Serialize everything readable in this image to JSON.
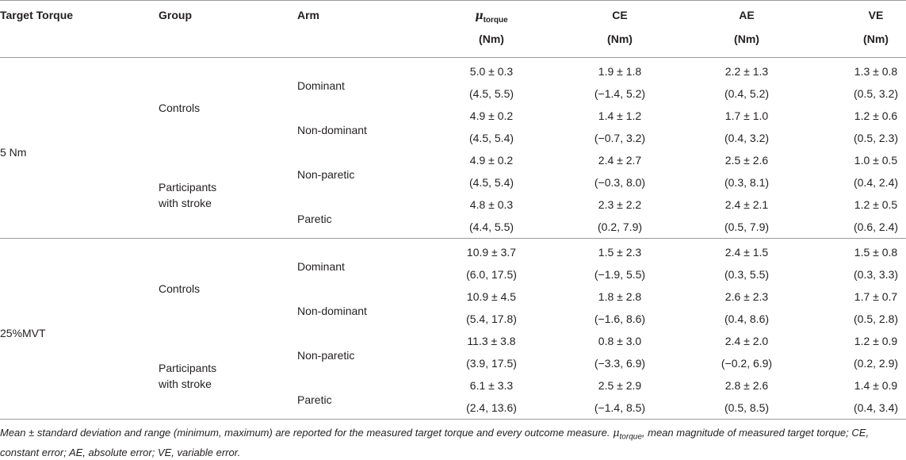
{
  "headers": {
    "target_torque": "Target Torque",
    "group": "Group",
    "arm": "Arm",
    "mu_symbol": "μ",
    "mu_sub": "torque",
    "ce": "CE",
    "ae": "AE",
    "ve": "VE",
    "unit": "(Nm)"
  },
  "sections": [
    {
      "target": "5 Nm",
      "groups": [
        {
          "line1": "Controls",
          "line2": "",
          "arms": [
            {
              "arm": "Dominant",
              "mu": [
                "5.0 ± 0.3",
                "(4.5, 5.5)"
              ],
              "ce": [
                "1.9 ± 1.8",
                "(−1.4, 5.2)"
              ],
              "ae": [
                "2.2 ± 1.3",
                "(0.4, 5.2)"
              ],
              "ve": [
                "1.3 ± 0.8",
                "(0.5, 3.2)"
              ]
            },
            {
              "arm": "Non-dominant",
              "mu": [
                "4.9 ± 0.2",
                "(4.5, 5.4)"
              ],
              "ce": [
                "1.4 ± 1.2",
                "(−0.7, 3.2)"
              ],
              "ae": [
                "1.7 ± 1.0",
                "(0.4, 3.2)"
              ],
              "ve": [
                "1.2 ± 0.6",
                "(0.5, 2.3)"
              ]
            }
          ]
        },
        {
          "line1": "Participants",
          "line2": "with stroke",
          "arms": [
            {
              "arm": "Non-paretic",
              "mu": [
                "4.9 ± 0.2",
                "(4.5, 5.4)"
              ],
              "ce": [
                "2.4 ± 2.7",
                "(−0.3, 8.0)"
              ],
              "ae": [
                "2.5 ± 2.6",
                "(0.3, 8.1)"
              ],
              "ve": [
                "1.0 ± 0.5",
                "(0.4, 2.4)"
              ]
            },
            {
              "arm": "Paretic",
              "mu": [
                "4.8 ± 0.3",
                "(4.4, 5.5)"
              ],
              "ce": [
                "2.3 ± 2.2",
                "(0.2, 7.9)"
              ],
              "ae": [
                "2.4 ± 2.1",
                "(0.5, 7.9)"
              ],
              "ve": [
                "1.2 ± 0.5",
                "(0.6, 2.4)"
              ]
            }
          ]
        }
      ]
    },
    {
      "target": "25%MVT",
      "groups": [
        {
          "line1": "Controls",
          "line2": "",
          "arms": [
            {
              "arm": "Dominant",
              "mu": [
                "10.9 ± 3.7",
                "(6.0, 17.5)"
              ],
              "ce": [
                "1.5 ± 2.3",
                "(−1.9, 5.5)"
              ],
              "ae": [
                "2.4 ± 1.5",
                "(0.3, 5.5)"
              ],
              "ve": [
                "1.5 ± 0.8",
                "(0.3, 3.3)"
              ]
            },
            {
              "arm": "Non-dominant",
              "mu": [
                "10.9 ± 4.5",
                "(5.4, 17.8)"
              ],
              "ce": [
                "1.8 ± 2.8",
                "(−1.6, 8.6)"
              ],
              "ae": [
                "2.6 ± 2.3",
                "(0.4, 8.6)"
              ],
              "ve": [
                "1.7 ± 0.7",
                "(0.5, 2.8)"
              ]
            }
          ]
        },
        {
          "line1": "Participants",
          "line2": "with stroke",
          "arms": [
            {
              "arm": "Non-paretic",
              "mu": [
                "11.3 ± 3.8",
                "(3.9, 17.5)"
              ],
              "ce": [
                "0.8 ± 3.0",
                "(−3.3, 6.9)"
              ],
              "ae": [
                "2.4 ± 2.0",
                "(−0.2, 6.9)"
              ],
              "ve": [
                "1.2 ± 0.9",
                "(0.2, 2.9)"
              ]
            },
            {
              "arm": "Paretic",
              "mu": [
                "6.1 ± 3.3",
                "(2.4, 13.6)"
              ],
              "ce": [
                "2.5 ± 2.9",
                "(−1.4, 8.5)"
              ],
              "ae": [
                "2.8 ± 2.6",
                "(0.5, 8.5)"
              ],
              "ve": [
                "1.4 ± 0.9",
                "(0.4, 3.4)"
              ]
            }
          ]
        }
      ]
    }
  ],
  "footnote": {
    "part1": "Mean ± standard deviation and range (minimum, maximum) are reported for the measured target torque and every outcome measure. ",
    "mu_symbol": "μ",
    "mu_sub": "torque",
    "part2": ", mean magnitude of measured target torque; CE, constant error; AE, absolute error; VE, variable error."
  }
}
